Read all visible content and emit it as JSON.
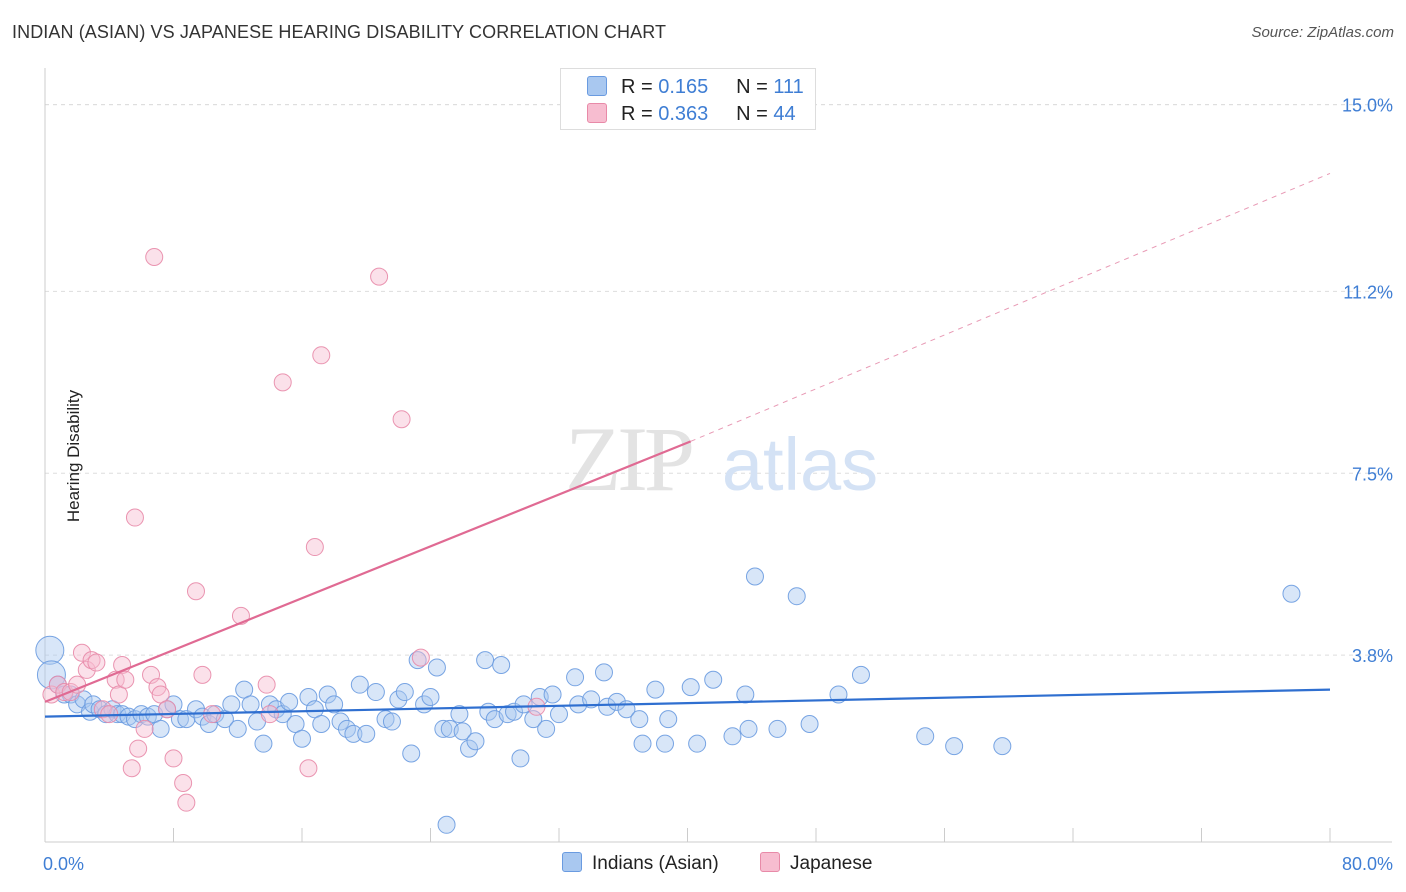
{
  "header": {
    "title": "INDIAN (ASIAN) VS JAPANESE HEARING DISABILITY CORRELATION CHART",
    "source": "Source: ZipAtlas.com"
  },
  "legend": {
    "r_label": "R =",
    "n_label": "N =",
    "series": [
      {
        "name": "Indians (Asian)",
        "r": "0.165",
        "n": "111",
        "fill": "#a9c8f0",
        "stroke": "#6a9be0"
      },
      {
        "name": "Japanese",
        "r": "0.363",
        "n": "44",
        "fill": "#f7bdd0",
        "stroke": "#e88aa8"
      }
    ]
  },
  "watermark": {
    "zip": "ZIP",
    "atlas": "atlas"
  },
  "chart_data": {
    "type": "scatter",
    "title": "INDIAN (ASIAN) VS JAPANESE HEARING DISABILITY CORRELATION CHART",
    "xlabel": "",
    "ylabel": "Hearing Disability",
    "xlim": [
      0,
      80
    ],
    "ylim": [
      0,
      15.5
    ],
    "x_tick_labels": [
      "0.0%",
      "80.0%"
    ],
    "y_ticks": [
      3.8,
      7.5,
      11.2,
      15.0
    ],
    "y_tick_labels": [
      "3.8%",
      "7.5%",
      "11.2%",
      "15.0%"
    ],
    "grid": true,
    "legend_position": "top-center",
    "series": [
      {
        "name": "Indians (Asian)",
        "color": "#6a9be0",
        "trend": {
          "x": [
            0,
            80
          ],
          "y": [
            2.55,
            3.1
          ]
        },
        "points": [
          [
            0.3,
            3.9
          ],
          [
            0.4,
            3.4
          ],
          [
            0.8,
            3.2
          ],
          [
            1.2,
            3.0
          ],
          [
            1.6,
            3.0
          ],
          [
            2.0,
            2.8
          ],
          [
            2.4,
            2.9
          ],
          [
            2.8,
            2.65
          ],
          [
            3.0,
            2.8
          ],
          [
            3.4,
            2.7
          ],
          [
            3.8,
            2.6
          ],
          [
            4.2,
            2.7
          ],
          [
            4.5,
            2.6
          ],
          [
            4.8,
            2.6
          ],
          [
            5.2,
            2.55
          ],
          [
            5.6,
            2.5
          ],
          [
            6.0,
            2.6
          ],
          [
            6.4,
            2.55
          ],
          [
            6.8,
            2.6
          ],
          [
            7.2,
            2.3
          ],
          [
            7.6,
            2.7
          ],
          [
            8.0,
            2.8
          ],
          [
            8.4,
            2.5
          ],
          [
            8.8,
            2.5
          ],
          [
            9.4,
            2.7
          ],
          [
            9.8,
            2.55
          ],
          [
            10.2,
            2.4
          ],
          [
            10.6,
            2.6
          ],
          [
            11.2,
            2.5
          ],
          [
            11.6,
            2.8
          ],
          [
            12.0,
            2.3
          ],
          [
            12.4,
            3.1
          ],
          [
            12.8,
            2.8
          ],
          [
            13.2,
            2.45
          ],
          [
            13.6,
            2.0
          ],
          [
            14.0,
            2.8
          ],
          [
            14.4,
            2.7
          ],
          [
            14.8,
            2.6
          ],
          [
            15.2,
            2.85
          ],
          [
            15.6,
            2.4
          ],
          [
            16.0,
            2.1
          ],
          [
            16.4,
            2.95
          ],
          [
            16.8,
            2.7
          ],
          [
            17.2,
            2.4
          ],
          [
            17.6,
            3.0
          ],
          [
            18.0,
            2.8
          ],
          [
            18.4,
            2.45
          ],
          [
            18.8,
            2.3
          ],
          [
            19.2,
            2.2
          ],
          [
            19.6,
            3.2
          ],
          [
            20.0,
            2.2
          ],
          [
            20.6,
            3.05
          ],
          [
            21.2,
            2.5
          ],
          [
            21.6,
            2.45
          ],
          [
            22.0,
            2.9
          ],
          [
            22.4,
            3.05
          ],
          [
            22.8,
            1.8
          ],
          [
            23.2,
            3.7
          ],
          [
            23.6,
            2.8
          ],
          [
            24.0,
            2.95
          ],
          [
            24.4,
            3.55
          ],
          [
            24.8,
            2.3
          ],
          [
            25.2,
            2.3
          ],
          [
            25.8,
            2.6
          ],
          [
            26.0,
            2.25
          ],
          [
            26.4,
            1.9
          ],
          [
            26.8,
            2.05
          ],
          [
            27.4,
            3.7
          ],
          [
            27.6,
            2.65
          ],
          [
            28.0,
            2.5
          ],
          [
            28.4,
            3.6
          ],
          [
            28.8,
            2.6
          ],
          [
            29.2,
            2.65
          ],
          [
            29.6,
            1.7
          ],
          [
            29.8,
            2.8
          ],
          [
            30.4,
            2.5
          ],
          [
            30.8,
            2.95
          ],
          [
            31.2,
            2.3
          ],
          [
            31.6,
            3.0
          ],
          [
            32.0,
            2.6
          ],
          [
            33.0,
            3.35
          ],
          [
            33.2,
            2.8
          ],
          [
            34.0,
            2.9
          ],
          [
            34.8,
            3.45
          ],
          [
            35.0,
            2.75
          ],
          [
            35.6,
            2.85
          ],
          [
            36.2,
            2.7
          ],
          [
            37.0,
            2.5
          ],
          [
            37.2,
            2.0
          ],
          [
            38.0,
            3.1
          ],
          [
            38.6,
            2.0
          ],
          [
            38.8,
            2.5
          ],
          [
            40.2,
            3.15
          ],
          [
            40.6,
            2.0
          ],
          [
            41.6,
            3.3
          ],
          [
            42.8,
            2.15
          ],
          [
            43.6,
            3.0
          ],
          [
            43.8,
            2.3
          ],
          [
            44.2,
            5.4
          ],
          [
            45.6,
            2.3
          ],
          [
            46.8,
            5.0
          ],
          [
            47.6,
            2.4
          ],
          [
            49.4,
            3.0
          ],
          [
            50.8,
            3.4
          ],
          [
            54.8,
            2.15
          ],
          [
            56.6,
            1.95
          ],
          [
            59.6,
            1.95
          ],
          [
            77.6,
            5.05
          ],
          [
            25.0,
            0.35
          ]
        ]
      },
      {
        "name": "Japanese",
        "color": "#e88aa8",
        "trend": {
          "x": [
            0,
            40.2
          ],
          "y": [
            2.85,
            8.15
          ]
        },
        "trend_dashed": {
          "x": [
            40.2,
            80
          ],
          "y": [
            8.15,
            13.6
          ]
        },
        "points": [
          [
            0.4,
            3.0
          ],
          [
            0.8,
            3.2
          ],
          [
            1.2,
            3.05
          ],
          [
            1.6,
            3.05
          ],
          [
            2.0,
            3.2
          ],
          [
            2.3,
            3.85
          ],
          [
            2.6,
            3.5
          ],
          [
            2.9,
            3.7
          ],
          [
            3.2,
            3.65
          ],
          [
            3.6,
            2.7
          ],
          [
            4.0,
            2.6
          ],
          [
            4.4,
            3.3
          ],
          [
            4.6,
            3.0
          ],
          [
            4.8,
            3.6
          ],
          [
            5.0,
            3.3
          ],
          [
            5.4,
            1.5
          ],
          [
            5.6,
            6.6
          ],
          [
            5.8,
            1.9
          ],
          [
            6.2,
            2.3
          ],
          [
            6.6,
            3.4
          ],
          [
            6.8,
            11.9
          ],
          [
            7.0,
            3.15
          ],
          [
            7.2,
            3.0
          ],
          [
            7.6,
            2.7
          ],
          [
            8.0,
            1.7
          ],
          [
            8.6,
            1.2
          ],
          [
            8.8,
            0.8
          ],
          [
            9.4,
            5.1
          ],
          [
            9.8,
            3.4
          ],
          [
            10.4,
            2.6
          ],
          [
            12.2,
            4.6
          ],
          [
            13.8,
            3.2
          ],
          [
            14.0,
            2.6
          ],
          [
            14.8,
            9.35
          ],
          [
            16.4,
            1.5
          ],
          [
            16.8,
            6.0
          ],
          [
            17.2,
            9.9
          ],
          [
            20.8,
            11.5
          ],
          [
            22.2,
            8.6
          ],
          [
            23.4,
            3.75
          ],
          [
            30.6,
            2.75
          ]
        ]
      }
    ]
  }
}
